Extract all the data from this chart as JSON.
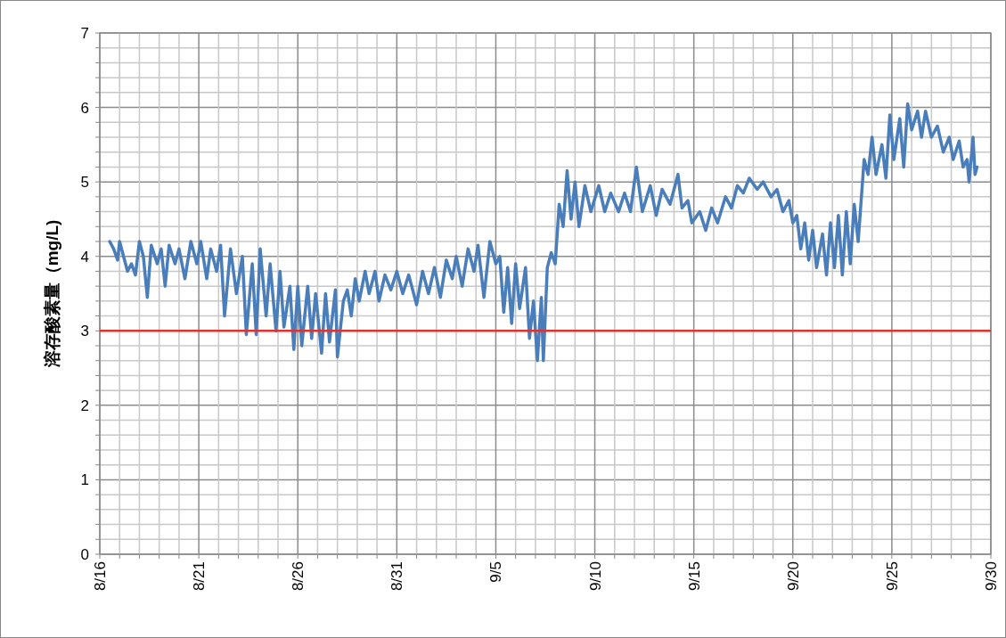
{
  "chart_data": {
    "type": "line",
    "ylabel": "溶存酸素量（mg/L)",
    "xlim": [
      "--08-16",
      "--09-30"
    ],
    "xticks": [
      {
        "value": "--08-16",
        "label": "8/16"
      },
      {
        "value": "--08-17",
        "label": null
      },
      {
        "value": "--08-18",
        "label": null
      },
      {
        "value": "--08-19",
        "label": null
      },
      {
        "value": "--08-20",
        "label": null
      },
      {
        "value": "--08-21",
        "label": "8/21"
      },
      {
        "value": "--08-22",
        "label": null
      },
      {
        "value": "--08-23",
        "label": null
      },
      {
        "value": "--08-24",
        "label": null
      },
      {
        "value": "--08-25",
        "label": null
      },
      {
        "value": "--08-26",
        "label": "8/26"
      },
      {
        "value": "--08-27",
        "label": null
      },
      {
        "value": "--08-28",
        "label": null
      },
      {
        "value": "--08-29",
        "label": null
      },
      {
        "value": "--08-30",
        "label": null
      },
      {
        "value": "--08-31",
        "label": "8/31"
      },
      {
        "value": "--09-01",
        "label": null
      },
      {
        "value": "--09-02",
        "label": null
      },
      {
        "value": "--09-03",
        "label": null
      },
      {
        "value": "--09-04",
        "label": null
      },
      {
        "value": "--09-05",
        "label": "9/5"
      },
      {
        "value": "--09-06",
        "label": null
      },
      {
        "value": "--09-07",
        "label": null
      },
      {
        "value": "--09-08",
        "label": null
      },
      {
        "value": "--09-09",
        "label": null
      },
      {
        "value": "--09-10",
        "label": "9/10"
      },
      {
        "value": "--09-11",
        "label": null
      },
      {
        "value": "--09-12",
        "label": null
      },
      {
        "value": "--09-13",
        "label": null
      },
      {
        "value": "--09-14",
        "label": null
      },
      {
        "value": "--09-15",
        "label": "9/15"
      },
      {
        "value": "--09-16",
        "label": null
      },
      {
        "value": "--09-17",
        "label": null
      },
      {
        "value": "--09-18",
        "label": null
      },
      {
        "value": "--09-19",
        "label": null
      },
      {
        "value": "--09-20",
        "label": "9/20"
      },
      {
        "value": "--09-21",
        "label": null
      },
      {
        "value": "--09-22",
        "label": null
      },
      {
        "value": "--09-23",
        "label": null
      },
      {
        "value": "--09-24",
        "label": null
      },
      {
        "value": "--09-25",
        "label": "9/25"
      },
      {
        "value": "--09-26",
        "label": null
      },
      {
        "value": "--09-27",
        "label": null
      },
      {
        "value": "--09-28",
        "label": null
      },
      {
        "value": "--09-29",
        "label": null
      },
      {
        "value": "--09-30",
        "label": "9/30"
      }
    ],
    "ylim": [
      0,
      7
    ],
    "yticks": [
      0,
      {
        "value": 0.2,
        "label": null
      },
      {
        "value": 0.4,
        "label": null
      },
      {
        "value": 0.6,
        "label": null
      },
      {
        "value": 0.8,
        "label": null
      },
      1,
      {
        "value": 1.2,
        "label": null
      },
      {
        "value": 1.4,
        "label": null
      },
      {
        "value": 1.6,
        "label": null
      },
      {
        "value": 1.8,
        "label": null
      },
      2,
      {
        "value": 2.2,
        "label": null
      },
      {
        "value": 2.4,
        "label": null
      },
      {
        "value": 2.6,
        "label": null
      },
      {
        "value": 2.8,
        "label": null
      },
      3,
      {
        "value": 3.2,
        "label": null
      },
      {
        "value": 3.4,
        "label": null
      },
      {
        "value": 3.6,
        "label": null
      },
      {
        "value": 3.8,
        "label": null
      },
      4,
      {
        "value": 4.2,
        "label": null
      },
      {
        "value": 4.4,
        "label": null
      },
      {
        "value": 4.6,
        "label": null
      },
      {
        "value": 4.8,
        "label": null
      },
      5,
      {
        "value": 5.2,
        "label": null
      },
      {
        "value": 5.4,
        "label": null
      },
      {
        "value": 5.6,
        "label": null
      },
      {
        "value": 5.8,
        "label": null
      },
      6,
      {
        "value": 6.2,
        "label": null
      },
      {
        "value": 6.4,
        "label": null
      },
      {
        "value": 6.6,
        "label": null
      },
      {
        "value": 6.8,
        "label": null
      },
      7
    ],
    "grid": true,
    "marker": "none",
    "line_style": "solid",
    "ref_lines": [
      {
        "axis": "y",
        "value": 3,
        "label": null,
        "color": "#e0322e",
        "line_style": "solid"
      }
    ],
    "x": [
      "--08-16T12:00",
      "--08-16T16:48",
      "--08-16T21:36",
      "--08-17T00:00",
      "--08-17T04:48",
      "--08-17T09:36",
      "--08-17T14:24",
      "--08-17T19:12",
      "--08-18T00:00",
      "--08-18T04:48",
      "--08-18T09:36",
      "--08-18T14:24",
      "--08-18T21:36",
      "--08-19T02:24",
      "--08-19T07:12",
      "--08-19T12:00",
      "--08-19T19:12",
      "--08-20T00:00",
      "--08-20T07:12",
      "--08-20T14:24",
      "--08-20T21:36",
      "--08-21T02:24",
      "--08-21T09:36",
      "--08-21T14:24",
      "--08-21T21:36",
      "--08-22T02:24",
      "--08-22T07:12",
      "--08-22T14:24",
      "--08-22T21:36",
      "--08-23T04:48",
      "--08-23T09:36",
      "--08-23T16:48",
      "--08-23T21:36",
      "--08-24T02:24",
      "--08-24T09:36",
      "--08-24T14:24",
      "--08-24T21:36",
      "--08-25T02:24",
      "--08-25T07:12",
      "--08-25T14:24",
      "--08-25T19:12",
      "--08-26T00:00",
      "--08-26T04:48",
      "--08-26T12:00",
      "--08-26T16:48",
      "--08-26T21:36",
      "--08-27T04:48",
      "--08-27T09:36",
      "--08-27T14:24",
      "--08-27T21:36",
      "--08-28T00:00",
      "--08-28T07:12",
      "--08-28T12:00",
      "--08-28T16:48",
      "--08-28T21:36",
      "--08-29T02:24",
      "--08-29T09:36",
      "--08-29T14:24",
      "--08-29T21:36",
      "--08-30T02:24",
      "--08-30T09:36",
      "--08-30T16:48",
      "--08-31T00:00",
      "--08-31T07:12",
      "--08-31T14:24",
      "--09-01T00:00",
      "--09-01T07:12",
      "--09-01T14:24",
      "--09-01T21:36",
      "--09-02T04:48",
      "--09-02T12:00",
      "--09-02T19:12",
      "--09-03T00:00",
      "--09-03T07:12",
      "--09-03T14:24",
      "--09-03T21:36",
      "--09-04T02:24",
      "--09-04T09:36",
      "--09-04T16:48",
      "--09-05T00:00",
      "--09-05T04:48",
      "--09-05T09:36",
      "--09-05T14:24",
      "--09-05T19:12",
      "--09-06T00:00",
      "--09-06T04:48",
      "--09-06T12:00",
      "--09-06T16:48",
      "--09-06T21:36",
      "--09-07T02:24",
      "--09-07T07:12",
      "--09-07T09:36",
      "--09-07T14:24",
      "--09-07T19:12",
      "--09-08T00:00",
      "--09-08T04:48",
      "--09-08T09:36",
      "--09-08T14:24",
      "--09-08T19:12",
      "--09-09T00:00",
      "--09-09T04:48",
      "--09-09T12:00",
      "--09-09T19:12",
      "--09-10T04:48",
      "--09-10T12:00",
      "--09-10T19:12",
      "--09-11T04:48",
      "--09-11T12:00",
      "--09-11T19:12",
      "--09-12T02:24",
      "--09-12T09:36",
      "--09-12T19:12",
      "--09-13T02:24",
      "--09-13T09:36",
      "--09-13T19:12",
      "--09-14T04:48",
      "--09-14T09:36",
      "--09-14T16:48",
      "--09-14T21:36",
      "--09-15T07:12",
      "--09-15T14:24",
      "--09-15T21:36",
      "--09-16T04:48",
      "--09-16T14:24",
      "--09-16T21:36",
      "--09-17T04:48",
      "--09-17T12:00",
      "--09-17T19:12",
      "--09-18T04:48",
      "--09-18T12:00",
      "--09-18T21:36",
      "--09-19T04:48",
      "--09-19T12:00",
      "--09-19T19:12",
      "--09-20T00:00",
      "--09-20T04:48",
      "--09-20T09:36",
      "--09-20T14:24",
      "--09-20T19:12",
      "--09-21T00:00",
      "--09-21T04:48",
      "--09-21T12:00",
      "--09-21T16:48",
      "--09-21T21:36",
      "--09-22T02:24",
      "--09-22T07:12",
      "--09-22T12:00",
      "--09-22T16:48",
      "--09-22T21:36",
      "--09-23T02:24",
      "--09-23T07:12",
      "--09-23T14:24",
      "--09-23T19:12",
      "--09-24T00:00",
      "--09-24T04:48",
      "--09-24T12:00",
      "--09-24T16:48",
      "--09-24T21:36",
      "--09-25T02:24",
      "--09-25T09:36",
      "--09-25T14:24",
      "--09-25T19:12",
      "--09-26T00:00",
      "--09-26T07:12",
      "--09-26T12:00",
      "--09-26T16:48",
      "--09-27T00:00",
      "--09-27T07:12",
      "--09-27T14:24",
      "--09-27T21:36",
      "--09-28T02:24",
      "--09-28T09:36",
      "--09-28T14:24",
      "--09-28T19:12",
      "--09-28T21:36",
      "--09-29T02:24",
      "--09-29T04:48",
      "--09-29T07:12"
    ],
    "series": [
      {
        "color": "#4a7ebb",
        "values": [
          4.2,
          4.1,
          3.95,
          4.2,
          4.0,
          3.8,
          3.9,
          3.75,
          4.2,
          4.0,
          3.45,
          4.15,
          3.9,
          4.1,
          3.6,
          4.15,
          3.9,
          4.1,
          3.7,
          4.2,
          3.9,
          4.2,
          3.7,
          4.1,
          3.8,
          4.15,
          3.2,
          4.1,
          3.5,
          4.0,
          2.95,
          3.9,
          2.95,
          4.1,
          3.2,
          3.9,
          3.0,
          3.8,
          3.05,
          3.6,
          2.75,
          3.6,
          2.8,
          3.6,
          2.9,
          3.5,
          2.7,
          3.5,
          2.85,
          3.55,
          2.65,
          3.4,
          3.55,
          3.2,
          3.7,
          3.4,
          3.8,
          3.5,
          3.8,
          3.4,
          3.75,
          3.55,
          3.8,
          3.5,
          3.75,
          3.35,
          3.8,
          3.5,
          3.85,
          3.45,
          3.95,
          3.7,
          4.0,
          3.6,
          4.1,
          3.8,
          4.15,
          3.45,
          4.2,
          3.9,
          4.0,
          3.25,
          3.85,
          3.1,
          3.9,
          3.3,
          3.85,
          2.9,
          3.4,
          2.6,
          3.45,
          2.6,
          3.85,
          4.05,
          3.9,
          4.7,
          4.4,
          5.15,
          4.5,
          5.0,
          4.4,
          4.95,
          4.6,
          4.95,
          4.6,
          4.85,
          4.6,
          4.85,
          4.6,
          5.2,
          4.6,
          4.95,
          4.55,
          4.9,
          4.7,
          5.1,
          4.65,
          4.75,
          4.45,
          4.6,
          4.35,
          4.65,
          4.45,
          4.8,
          4.65,
          4.95,
          4.85,
          5.05,
          4.9,
          5.0,
          4.8,
          4.9,
          4.6,
          4.75,
          4.45,
          4.55,
          4.1,
          4.45,
          3.95,
          4.35,
          3.85,
          4.3,
          3.75,
          4.45,
          3.85,
          4.55,
          3.75,
          4.6,
          3.9,
          4.7,
          4.2,
          5.3,
          5.1,
          5.6,
          5.1,
          5.5,
          5.05,
          5.9,
          5.3,
          5.85,
          5.2,
          6.05,
          5.7,
          5.95,
          5.6,
          5.95,
          5.6,
          5.75,
          5.4,
          5.6,
          5.3,
          5.55,
          5.2,
          5.3,
          5.0,
          5.6,
          5.1,
          5.2
        ]
      }
    ]
  }
}
